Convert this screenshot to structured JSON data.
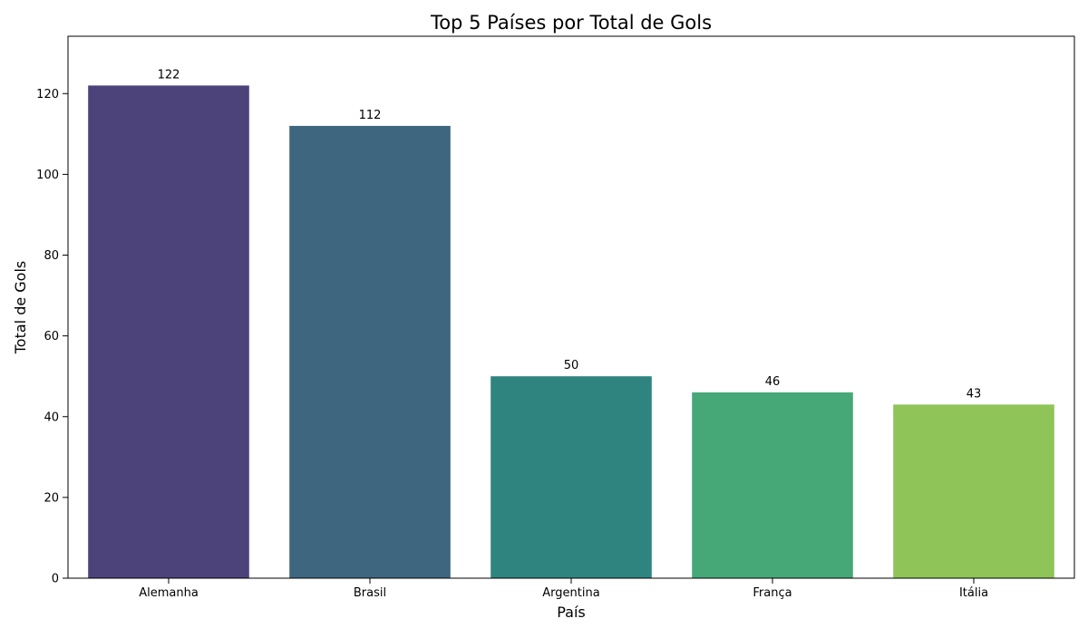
{
  "chart_data": {
    "type": "bar",
    "title": "Top 5 Países por Total de Gols",
    "xlabel": "País",
    "ylabel": "Total de Gols",
    "categories": [
      "Alemanha",
      "Brasil",
      "Argentina",
      "França",
      "Itália"
    ],
    "values": [
      122,
      112,
      50,
      46,
      43
    ],
    "data_labels": [
      "122",
      "112",
      "50",
      "46",
      "43"
    ],
    "colors": [
      "#4b437a",
      "#3e667f",
      "#2f8480",
      "#47a877",
      "#8fc558"
    ],
    "ylim": [
      0,
      134.2
    ],
    "yticks": [
      0,
      20,
      40,
      60,
      80,
      100,
      120
    ],
    "ytick_labels": [
      "0",
      "20",
      "40",
      "60",
      "80",
      "100",
      "120"
    ],
    "grid": false,
    "legend": "none"
  }
}
